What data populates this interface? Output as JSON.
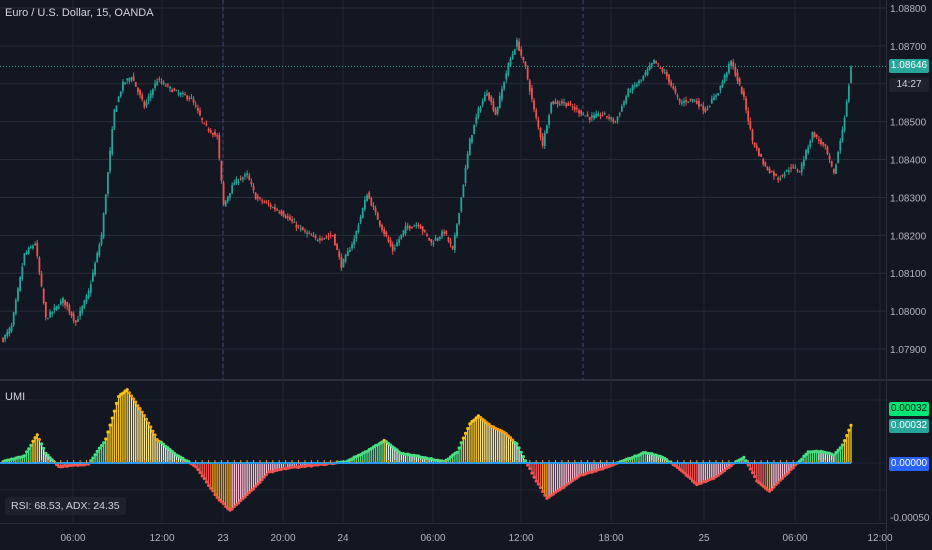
{
  "header": {
    "symbol_title": "Euro / U.S. Dollar, 15, OANDA"
  },
  "indicator": {
    "name": "UMI",
    "readout": "RSI: 68.53, ADX: 24.35"
  },
  "price_axis": {
    "ticks": [
      "1.08800",
      "1.08700",
      "1.08600",
      "1.08500",
      "1.08400",
      "1.08300",
      "1.08200",
      "1.08100",
      "1.08000",
      "1.07900"
    ],
    "current_price": "1.08646",
    "countdown": "14:27"
  },
  "indicator_axis": {
    "ticks": [
      "-0.00050"
    ],
    "tag_top": "0.00032",
    "tag_mid": "0.00032",
    "tag_zero": "0.00000"
  },
  "time_axis": {
    "ticks": [
      "06:00",
      "12:00",
      "23",
      "20:00",
      "24",
      "06:00",
      "12:00",
      "18:00",
      "25",
      "06:00",
      "12:00"
    ]
  },
  "colors": {
    "background": "#131722",
    "bull": "#26a69a",
    "bear": "#ef5350",
    "hist_green": "#4ade80",
    "hist_teal": "#26a69a",
    "hist_gold": "#f5c518",
    "hist_orange": "#f59e0b",
    "hist_red": "#ef5350",
    "hist_pink": "#f8bbd0",
    "hist_blue": "#2196f3",
    "tag_green": "#00e676",
    "tag_teal": "#26a69a",
    "tag_blue": "#2962ff"
  },
  "chart_data": {
    "type": "candlestick",
    "price_anchors": [
      [
        0,
        1.07925
      ],
      [
        4,
        1.0796
      ],
      [
        10,
        1.0815
      ],
      [
        15,
        1.0818
      ],
      [
        20,
        1.0798
      ],
      [
        28,
        1.0803
      ],
      [
        34,
        1.0797
      ],
      [
        40,
        1.0805
      ],
      [
        46,
        1.082
      ],
      [
        52,
        1.0853
      ],
      [
        56,
        1.086
      ],
      [
        60,
        1.0862
      ],
      [
        66,
        1.0854
      ],
      [
        72,
        1.0861
      ],
      [
        80,
        1.0858
      ],
      [
        88,
        1.0856
      ],
      [
        94,
        1.0849
      ],
      [
        100,
        1.0846
      ],
      [
        103,
        1.0828
      ],
      [
        108,
        1.0834
      ],
      [
        114,
        1.0836
      ],
      [
        118,
        1.083
      ],
      [
        124,
        1.0828
      ],
      [
        130,
        1.0826
      ],
      [
        138,
        1.0822
      ],
      [
        146,
        1.0819
      ],
      [
        154,
        1.082
      ],
      [
        158,
        1.0812
      ],
      [
        164,
        1.0819
      ],
      [
        170,
        1.0831
      ],
      [
        176,
        1.0823
      ],
      [
        182,
        1.0816
      ],
      [
        188,
        1.0822
      ],
      [
        194,
        1.0823
      ],
      [
        200,
        1.0818
      ],
      [
        206,
        1.0821
      ],
      [
        210,
        1.0816
      ],
      [
        214,
        1.083
      ],
      [
        218,
        1.0845
      ],
      [
        222,
        1.0853
      ],
      [
        226,
        1.0858
      ],
      [
        230,
        1.0852
      ],
      [
        236,
        1.0865
      ],
      [
        240,
        1.0871
      ],
      [
        244,
        1.0864
      ],
      [
        248,
        1.0853
      ],
      [
        252,
        1.0844
      ],
      [
        256,
        1.0855
      ],
      [
        262,
        1.0855
      ],
      [
        268,
        1.0853
      ],
      [
        274,
        1.0851
      ],
      [
        280,
        1.0852
      ],
      [
        286,
        1.085
      ],
      [
        292,
        1.0858
      ],
      [
        298,
        1.0861
      ],
      [
        304,
        1.0866
      ],
      [
        310,
        1.0862
      ],
      [
        316,
        1.0855
      ],
      [
        322,
        1.0856
      ],
      [
        328,
        1.0853
      ],
      [
        334,
        1.0858
      ],
      [
        340,
        1.0866
      ],
      [
        346,
        1.0856
      ],
      [
        350,
        1.0845
      ],
      [
        356,
        1.0838
      ],
      [
        362,
        1.0835
      ],
      [
        368,
        1.0838
      ],
      [
        372,
        1.0837
      ],
      [
        378,
        1.0847
      ],
      [
        384,
        1.0843
      ],
      [
        388,
        1.0836
      ],
      [
        392,
        1.0848
      ],
      [
        394,
        1.0855
      ],
      [
        396,
        1.08646
      ]
    ],
    "umi_anchors": [
      [
        0,
        1e-05
      ],
      [
        10,
        6e-05
      ],
      [
        16,
        0.00024
      ],
      [
        20,
        8e-05
      ],
      [
        26,
        -3e-05
      ],
      [
        40,
        -1e-05
      ],
      [
        48,
        0.0002
      ],
      [
        54,
        0.00056
      ],
      [
        58,
        0.00062
      ],
      [
        66,
        0.0004
      ],
      [
        72,
        0.0002
      ],
      [
        80,
        8e-05
      ],
      [
        90,
        -3e-05
      ],
      [
        100,
        -0.00029
      ],
      [
        106,
        -0.0004
      ],
      [
        112,
        -0.0003
      ],
      [
        118,
        -0.0002
      ],
      [
        124,
        -8e-05
      ],
      [
        130,
        -5e-05
      ],
      [
        140,
        -3e-05
      ],
      [
        150,
        -1e-05
      ],
      [
        160,
        1e-05
      ],
      [
        170,
        0.0001
      ],
      [
        178,
        0.00019
      ],
      [
        186,
        8e-05
      ],
      [
        196,
        5e-05
      ],
      [
        206,
        1e-05
      ],
      [
        212,
        9e-05
      ],
      [
        218,
        0.00033
      ],
      [
        222,
        0.0004
      ],
      [
        228,
        0.00031
      ],
      [
        234,
        0.00026
      ],
      [
        240,
        0.00016
      ],
      [
        248,
        -0.00012
      ],
      [
        254,
        -0.0003
      ],
      [
        262,
        -0.0002
      ],
      [
        270,
        -0.0001
      ],
      [
        280,
        -5e-05
      ],
      [
        290,
        2e-05
      ],
      [
        300,
        9e-05
      ],
      [
        308,
        5e-05
      ],
      [
        316,
        -5e-05
      ],
      [
        324,
        -0.00018
      ],
      [
        332,
        -0.00013
      ],
      [
        340,
        -2e-05
      ],
      [
        346,
        5e-05
      ],
      [
        352,
        -0.00015
      ],
      [
        358,
        -0.00024
      ],
      [
        364,
        -0.00013
      ],
      [
        370,
        -2e-05
      ],
      [
        376,
        9e-05
      ],
      [
        382,
        0.0001
      ],
      [
        388,
        7e-05
      ],
      [
        392,
        0.00015
      ],
      [
        396,
        0.00032
      ]
    ]
  }
}
